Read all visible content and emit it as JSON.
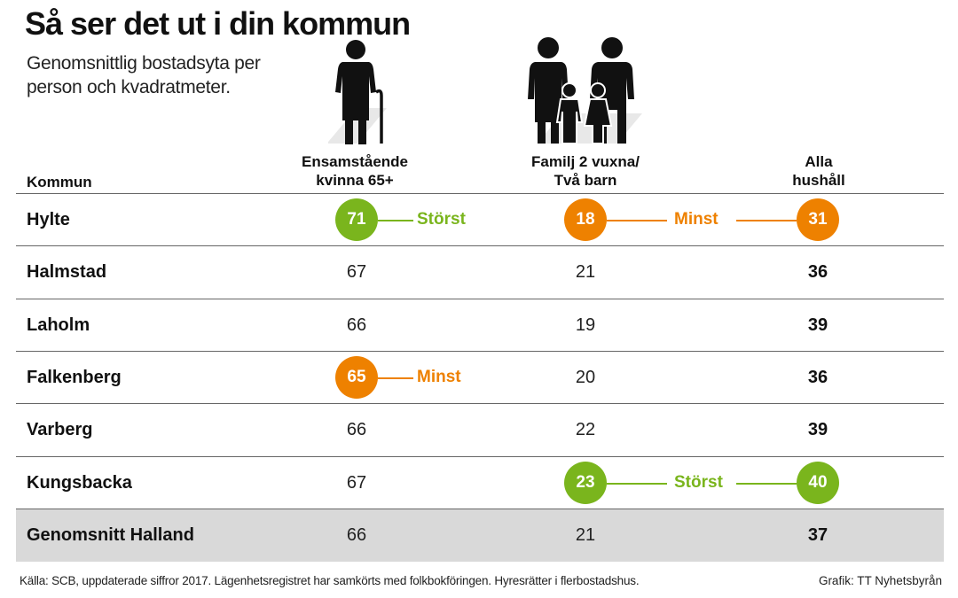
{
  "header": {
    "title": "Så ser det ut i din kommun",
    "subtitle": "Genomsnittlig bostadsyta per person och kvadratmeter."
  },
  "icons": [
    "elderly-woman-with-cane-icon",
    "family-two-adults-two-children-icon"
  ],
  "colors": {
    "green": "#7ab51d",
    "orange": "#ee8100",
    "average_row": "#d9d9d9"
  },
  "chart_data": {
    "type": "table",
    "columns": [
      {
        "key": "kommun",
        "label": "Kommun"
      },
      {
        "key": "kvinna",
        "label_lines": [
          "Ensamstående",
          "kvinna 65+"
        ]
      },
      {
        "key": "familj",
        "label_lines": [
          "Familj 2 vuxna/",
          "Två barn"
        ]
      },
      {
        "key": "alla",
        "label_lines": [
          "Alla",
          "hushåll"
        ]
      }
    ],
    "rows": [
      {
        "kommun": "Hylte",
        "values": [
          71,
          18,
          31
        ],
        "highlight": [
          "green",
          "orange",
          "orange"
        ],
        "tags": [
          "Störst",
          "Minst",
          ""
        ]
      },
      {
        "kommun": "Halmstad",
        "values": [
          67,
          21,
          36
        ],
        "highlight": [
          "",
          "",
          ""
        ],
        "tags": [
          "",
          "",
          ""
        ]
      },
      {
        "kommun": "Laholm",
        "values": [
          66,
          19,
          39
        ],
        "highlight": [
          "",
          "",
          ""
        ],
        "tags": [
          "",
          "",
          ""
        ]
      },
      {
        "kommun": "Falkenberg",
        "values": [
          65,
          20,
          36
        ],
        "highlight": [
          "orange",
          "",
          ""
        ],
        "tags": [
          "Minst",
          "",
          ""
        ]
      },
      {
        "kommun": "Varberg",
        "values": [
          66,
          22,
          39
        ],
        "highlight": [
          "",
          "",
          ""
        ],
        "tags": [
          "",
          "",
          ""
        ]
      },
      {
        "kommun": "Kungsbacka",
        "values": [
          67,
          23,
          40
        ],
        "highlight": [
          "",
          "green",
          "green"
        ],
        "tags": [
          "",
          "Störst",
          ""
        ]
      },
      {
        "kommun": "Genomsnitt Halland",
        "values": [
          66,
          21,
          37
        ],
        "highlight": [
          "",
          "",
          ""
        ],
        "tags": [
          "",
          "",
          ""
        ],
        "average": true
      }
    ]
  },
  "footer": {
    "source": "Källa: SCB, uppdaterade siffror 2017. Lägenhetsregistret har samkörts med folkbokföringen. Hyresrätter i flerbostadshus.",
    "credit": "Grafik: TT Nyhetsbyrån"
  }
}
